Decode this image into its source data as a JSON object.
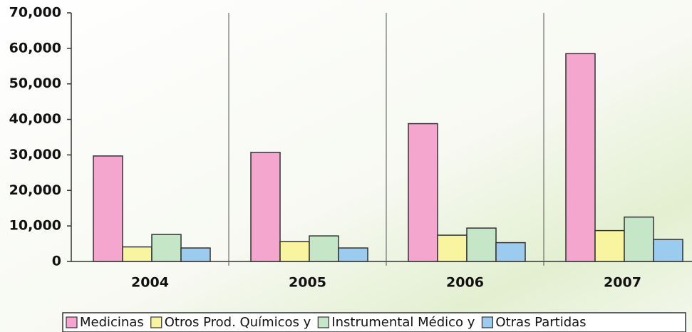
{
  "chart_data": {
    "type": "bar",
    "categories": [
      "2004",
      "2005",
      "2006",
      "2007"
    ],
    "series": [
      {
        "name": "Medicinas",
        "color": "#f4a6cf",
        "values": [
          29700,
          30700,
          38800,
          58500
        ]
      },
      {
        "name": "Otros Prod. Químicos y",
        "color": "#f8f4a0",
        "values": [
          4100,
          5600,
          7400,
          8700
        ]
      },
      {
        "name": "Instrumental Médico y",
        "color": "#c6e6c8",
        "values": [
          7600,
          7200,
          9400,
          12500
        ]
      },
      {
        "name": "Otras Partidas",
        "color": "#9ccbf0",
        "values": [
          3800,
          3800,
          5300,
          6200
        ]
      }
    ],
    "ylim": [
      0,
      70000
    ],
    "yticks": [
      0,
      {
        "value": 10000,
        "label": "10,000"
      },
      {
        "value": 20000,
        "label": "20,000"
      },
      {
        "value": 30000,
        "label": "30,000"
      },
      {
        "value": 40000,
        "label": "40,000"
      },
      {
        "value": 50000,
        "label": "50,000"
      },
      {
        "value": 60000,
        "label": "60,000"
      },
      {
        "value": 70000,
        "label": "70,000"
      }
    ],
    "grid": false,
    "legend": "bottom"
  }
}
